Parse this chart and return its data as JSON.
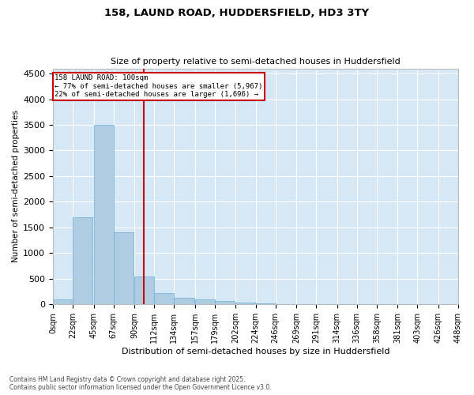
{
  "title1": "158, LAUND ROAD, HUDDERSFIELD, HD3 3TY",
  "title2": "Size of property relative to semi-detached houses in Huddersfield",
  "xlabel": "Distribution of semi-detached houses by size in Huddersfield",
  "ylabel": "Number of semi-detached properties",
  "bar_color": "#aecde3",
  "bar_edge_color": "#6aaed6",
  "background_color": "#d6e8f5",
  "grid_color": "#ffffff",
  "vline_value": 100,
  "vline_color": "#cc0000",
  "annotation_title": "158 LAUND ROAD: 100sqm",
  "annotation_line1": "← 77% of semi-detached houses are smaller (5,967)",
  "annotation_line2": "22% of semi-detached houses are larger (1,696) →",
  "annotation_box_color": "#cc0000",
  "footer1": "Contains HM Land Registry data © Crown copyright and database right 2025.",
  "footer2": "Contains public sector information licensed under the Open Government Licence v3.0.",
  "bin_edges": [
    0,
    22,
    45,
    67,
    90,
    112,
    134,
    157,
    179,
    202,
    224,
    246,
    269,
    291,
    314,
    336,
    358,
    381,
    403,
    426,
    448
  ],
  "bin_labels": [
    "0sqm",
    "22sqm",
    "45sqm",
    "67sqm",
    "90sqm",
    "112sqm",
    "134sqm",
    "157sqm",
    "179sqm",
    "202sqm",
    "224sqm",
    "246sqm",
    "269sqm",
    "291sqm",
    "314sqm",
    "336sqm",
    "358sqm",
    "381sqm",
    "403sqm",
    "426sqm",
    "448sqm"
  ],
  "bar_heights": [
    100,
    1700,
    3500,
    1400,
    550,
    220,
    130,
    100,
    60,
    30,
    15,
    10,
    8,
    5,
    5,
    3,
    3,
    2,
    1,
    1
  ],
  "ylim": [
    0,
    4600
  ],
  "yticks": [
    0,
    500,
    1000,
    1500,
    2000,
    2500,
    3000,
    3500,
    4000,
    4500
  ],
  "fig_width": 6.0,
  "fig_height": 5.0,
  "dpi": 100
}
